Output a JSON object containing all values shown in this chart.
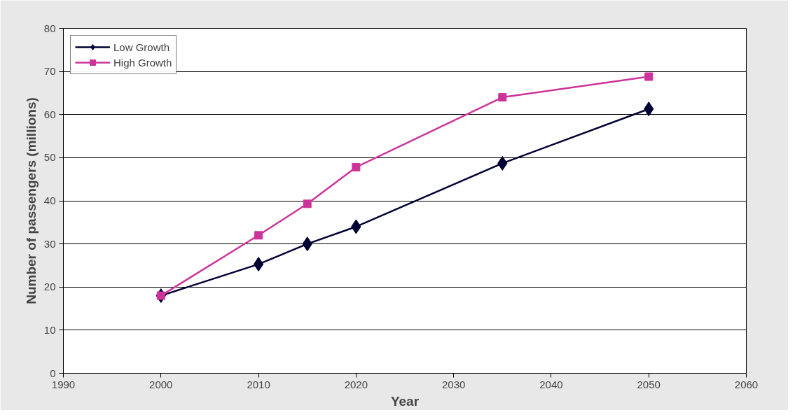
{
  "chart_data": {
    "type": "line",
    "xlabel": "Year",
    "ylabel": "Number of passengers (millions)",
    "x": [
      2000,
      2010,
      2015,
      2020,
      2035,
      2050
    ],
    "series": [
      {
        "name": "Low Growth",
        "color": "#000033",
        "marker": "diamond",
        "values": [
          18,
          25.3,
          30,
          34,
          48.7,
          61.3
        ]
      },
      {
        "name": "High Growth",
        "color": "#cc3399",
        "marker": "square",
        "values": [
          18,
          32,
          39.3,
          47.8,
          64,
          68.8
        ]
      }
    ],
    "xlim": [
      1990,
      2060
    ],
    "xticks": [
      1990,
      2000,
      2010,
      2020,
      2030,
      2040,
      2050,
      2060
    ],
    "ylim": [
      0,
      80
    ],
    "yticks": [
      0,
      10,
      20,
      30,
      40,
      50,
      60,
      70,
      80
    ],
    "grid": "y",
    "legend": "top left",
    "line_style": "solid"
  }
}
